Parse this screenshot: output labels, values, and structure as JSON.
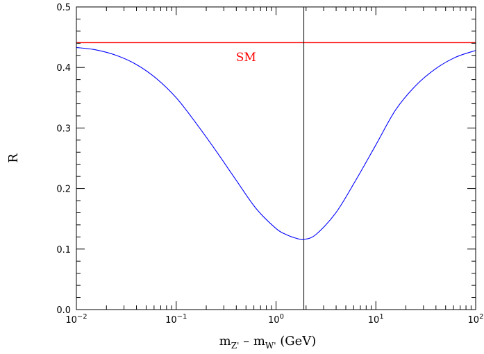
{
  "chart_data": {
    "type": "line",
    "x_scale": "log",
    "xlim": [
      0.01,
      100
    ],
    "ylim": [
      0.0,
      0.5
    ],
    "ylabel": "R",
    "xlabel": {
      "parts": [
        "m",
        "Z'",
        " – m",
        "W'",
        " (GeV)"
      ]
    },
    "x_ticks": [
      {
        "value": 0.01,
        "base": "10",
        "exp": "−2"
      },
      {
        "value": 0.1,
        "base": "10",
        "exp": "−1"
      },
      {
        "value": 1,
        "base": "10",
        "exp": "0"
      },
      {
        "value": 10,
        "base": "10",
        "exp": "1"
      },
      {
        "value": 100,
        "base": "10",
        "exp": "2"
      }
    ],
    "y_ticks": [
      {
        "value": 0.0,
        "label": "0.0"
      },
      {
        "value": 0.1,
        "label": "0.1"
      },
      {
        "value": 0.2,
        "label": "0.2"
      },
      {
        "value": 0.3,
        "label": "0.3"
      },
      {
        "value": 0.4,
        "label": "0.4"
      },
      {
        "value": 0.5,
        "label": "0.5"
      }
    ],
    "reference_line": {
      "name": "SM",
      "y": 0.441,
      "color": "#ff0000",
      "label_at": {
        "x": 0.5,
        "y": 0.415
      }
    },
    "vertical_line": {
      "x": 1.9,
      "color": "#000000"
    },
    "series": [
      {
        "color": "#0000ff",
        "x": [
          0.01,
          0.0158,
          0.0251,
          0.0398,
          0.0631,
          0.1,
          0.158,
          0.251,
          0.398,
          0.631,
          1.0,
          1.26,
          1.58,
          1.9,
          2.51,
          3.98,
          6.31,
          10,
          15.8,
          25.1,
          39.8,
          63.1,
          100
        ],
        "y": [
          0.433,
          0.429,
          0.42,
          0.405,
          0.382,
          0.35,
          0.308,
          0.262,
          0.214,
          0.167,
          0.134,
          0.124,
          0.118,
          0.116,
          0.124,
          0.16,
          0.214,
          0.272,
          0.33,
          0.37,
          0.398,
          0.417,
          0.428
        ]
      }
    ]
  }
}
